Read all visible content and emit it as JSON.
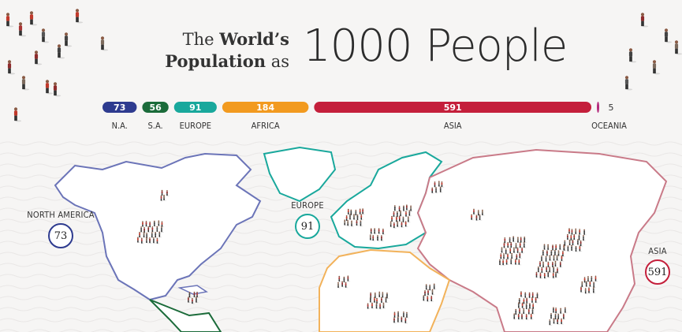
{
  "title": {
    "line1_pre": "The ",
    "line1_bold": "World’s",
    "line2_bold": "Population",
    "line2_post": " as",
    "big": "1000 People"
  },
  "colors": {
    "north_america": "#2e3b8f",
    "south_america": "#1b6b3a",
    "europe": "#19a89c",
    "africa": "#f29a1f",
    "asia": "#c41f3b",
    "oceania": "#b3267a"
  },
  "chart_data": {
    "type": "bar",
    "total": 1000,
    "categories": [
      "N.A.",
      "S.A.",
      "EUROPE",
      "AFRICA",
      "ASIA",
      "OCEANIA"
    ],
    "values": [
      73,
      56,
      91,
      184,
      591,
      5
    ],
    "value_labels": [
      "73",
      "56",
      "91",
      "184",
      "591",
      "5"
    ],
    "colors": [
      "#2e3b8f",
      "#1b6b3a",
      "#19a89c",
      "#f29a1f",
      "#c41f3b",
      "#b3267a"
    ]
  },
  "map": {
    "callouts": [
      {
        "label": "NORTH AMERICA",
        "value": "73",
        "color": "#2e3b8f"
      },
      {
        "label": "EUROPE",
        "value": "91",
        "color": "#19a89c"
      },
      {
        "label": "ASIA",
        "value": "591",
        "color": "#c41f3b"
      }
    ]
  }
}
